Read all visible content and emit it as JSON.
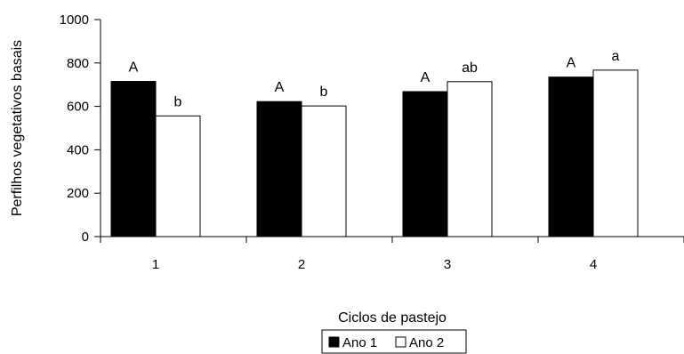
{
  "chart_data": {
    "type": "bar",
    "title": "",
    "xlabel": "Ciclos de pastejo",
    "ylabel": "Perfilhos vegetativos basais",
    "categories": [
      "1",
      "2",
      "3",
      "4"
    ],
    "ylim": [
      0,
      1000
    ],
    "yticks": [
      0,
      200,
      400,
      600,
      800,
      1000
    ],
    "grid": false,
    "legend_position": "bottom",
    "series": [
      {
        "name": "Ano 1",
        "color": "#000000",
        "values": [
          715,
          622,
          668,
          735
        ],
        "labels": [
          "A",
          "A",
          "A",
          "A"
        ]
      },
      {
        "name": "Ano 2",
        "color": "#ffffff",
        "values": [
          556,
          602,
          714,
          767
        ],
        "labels": [
          "b",
          "b",
          "ab",
          "a"
        ]
      }
    ]
  }
}
